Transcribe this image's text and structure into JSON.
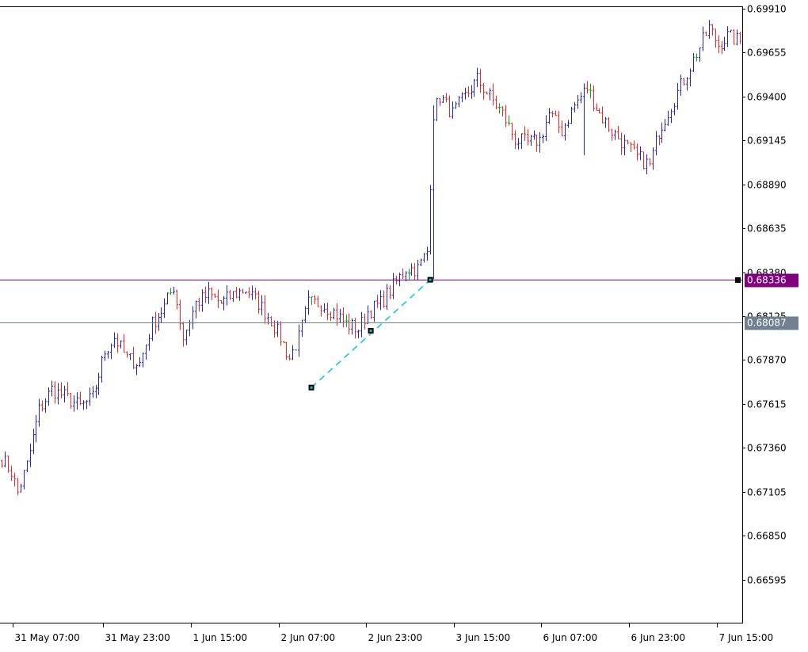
{
  "colors": {
    "background": "#ffffff",
    "frame": "#000000",
    "bull_bar": "#2020e0",
    "bear_bar": "#ff2020",
    "neutral_bar": "#00b000",
    "line_upper": "#800080",
    "line_lower": "#708090",
    "trendline": "#00c8d8",
    "trendline_anchor": "#000000",
    "label_text": "#ffffff"
  },
  "chart_data": {
    "type": "ohlc",
    "ylim": [
      0.6634,
      0.6991
    ],
    "y_tick_labels": [
      "0.69910",
      "0.69655",
      "0.69400",
      "0.69145",
      "0.68890",
      "0.68635",
      "0.68380",
      "0.68125",
      "0.67870",
      "0.67615",
      "0.67360",
      "0.67105",
      "0.66850",
      "0.66595"
    ],
    "y_ticks": [
      0.6991,
      0.69655,
      0.694,
      0.69145,
      0.6889,
      0.68635,
      0.6838,
      0.68125,
      0.6787,
      0.67615,
      0.6736,
      0.67105,
      0.6685,
      0.66595
    ],
    "x_tick_labels": [
      "31 May 07:00",
      "31 May 23:00",
      "1 Jun 15:00",
      "2 Jun 07:00",
      "2 Jun 23:00",
      "3 Jun 15:00",
      "6 Jun 07:00",
      "6 Jun 23:00",
      "7 Jun 15:00"
    ],
    "x_tick_bars": [
      4,
      33,
      61,
      89,
      117,
      145,
      173,
      201,
      229
    ],
    "bar_count": 237,
    "anchors": [
      [
        0,
        0.673
      ],
      [
        3,
        0.6722
      ],
      [
        5,
        0.671
      ],
      [
        8,
        0.6726
      ],
      [
        12,
        0.6758
      ],
      [
        16,
        0.677
      ],
      [
        20,
        0.6766
      ],
      [
        25,
        0.676
      ],
      [
        29,
        0.6765
      ],
      [
        33,
        0.6792
      ],
      [
        36,
        0.68
      ],
      [
        40,
        0.6788
      ],
      [
        44,
        0.6785
      ],
      [
        48,
        0.6808
      ],
      [
        52,
        0.6818
      ],
      [
        55,
        0.683
      ],
      [
        58,
        0.68
      ],
      [
        62,
        0.682
      ],
      [
        66,
        0.6825
      ],
      [
        70,
        0.682
      ],
      [
        74,
        0.6825
      ],
      [
        78,
        0.6828
      ],
      [
        82,
        0.682
      ],
      [
        86,
        0.681
      ],
      [
        89,
        0.68
      ],
      [
        92,
        0.6788
      ],
      [
        95,
        0.68
      ],
      [
        98,
        0.682
      ],
      [
        102,
        0.682
      ],
      [
        106,
        0.6815
      ],
      [
        110,
        0.6808
      ],
      [
        114,
        0.6805
      ],
      [
        117,
        0.6815
      ],
      [
        121,
        0.682
      ],
      [
        125,
        0.683
      ],
      [
        129,
        0.684
      ],
      [
        133,
        0.684
      ],
      [
        136,
        0.685
      ],
      [
        138,
        0.693
      ],
      [
        140,
        0.694
      ],
      [
        144,
        0.693
      ],
      [
        148,
        0.694
      ],
      [
        152,
        0.695
      ],
      [
        156,
        0.694
      ],
      [
        160,
        0.693
      ],
      [
        164,
        0.6915
      ],
      [
        168,
        0.6913
      ],
      [
        172,
        0.6915
      ],
      [
        175,
        0.693
      ],
      [
        179,
        0.692
      ],
      [
        183,
        0.6935
      ],
      [
        187,
        0.6945
      ],
      [
        191,
        0.693
      ],
      [
        195,
        0.692
      ],
      [
        199,
        0.6912
      ],
      [
        203,
        0.6905
      ],
      [
        207,
        0.69
      ],
      [
        210,
        0.692
      ],
      [
        214,
        0.6935
      ],
      [
        218,
        0.695
      ],
      [
        222,
        0.6965
      ],
      [
        226,
        0.698
      ],
      [
        229,
        0.697
      ],
      [
        232,
        0.6975
      ],
      [
        236,
        0.6972
      ]
    ],
    "horizontal_lines": [
      {
        "value": 0.68336,
        "label": "0.68336",
        "color": "#800080"
      },
      {
        "value": 0.68087,
        "label": "0.68087",
        "color": "#708090"
      }
    ],
    "trendline_points": [
      {
        "bar": 99,
        "value": 0.6771
      },
      {
        "bar": 118,
        "value": 0.6804
      },
      {
        "bar": 137,
        "value": 0.68336
      }
    ]
  }
}
